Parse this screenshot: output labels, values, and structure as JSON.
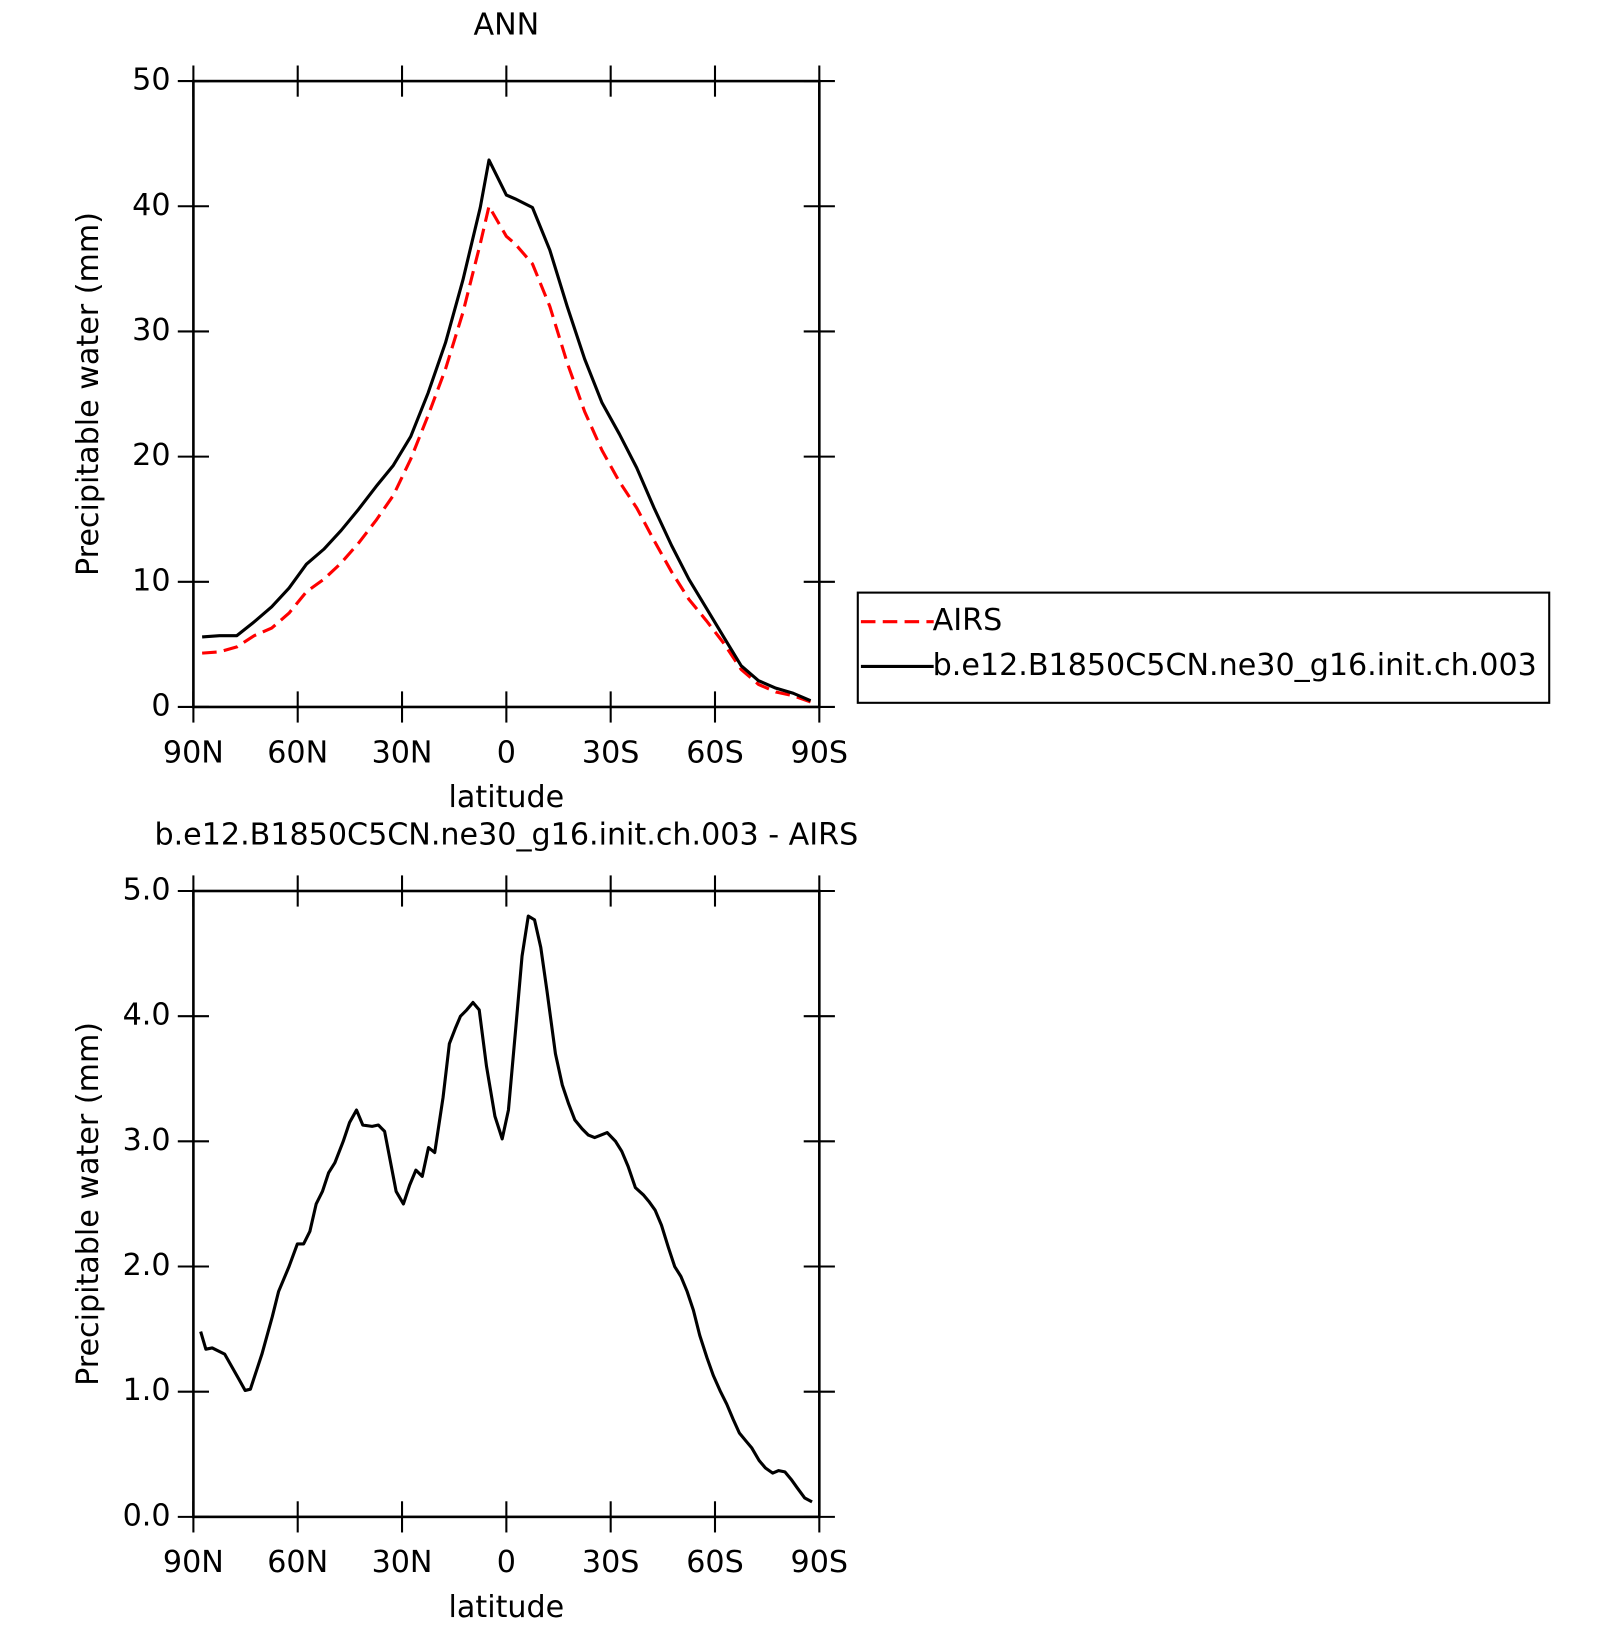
{
  "chart_data": [
    {
      "type": "line",
      "title": "ANN",
      "x_label": "latitude",
      "y_label": "Precipitable water (mm)",
      "x": [
        87.5,
        82.5,
        77.5,
        72.5,
        67.5,
        62.5,
        57.5,
        52.5,
        47.5,
        42.5,
        37.5,
        32.5,
        27.5,
        22.5,
        17.5,
        12.5,
        7.5,
        5,
        2.5,
        0,
        -2.5,
        -7.5,
        -12.5,
        -17.5,
        -22.5,
        -27.5,
        -32.5,
        -37.5,
        -42.5,
        -47.5,
        -52.5,
        -57.5,
        -62.5,
        -67.5,
        -72.5,
        -77.5,
        -82.5,
        -87.5
      ],
      "xlim": [
        90,
        -90
      ],
      "xticks": [
        {
          "value": 90,
          "label": "90N"
        },
        {
          "value": 60,
          "label": "60N"
        },
        {
          "value": 30,
          "label": "30N"
        },
        0,
        {
          "value": -30,
          "label": "30S"
        },
        {
          "value": -60,
          "label": "60S"
        },
        {
          "value": -90,
          "label": "90S"
        }
      ],
      "ylim": [
        0,
        50
      ],
      "yticks": [
        0,
        10,
        20,
        30,
        40,
        50
      ],
      "legend": "right",
      "series": [
        {
          "name": "AIRS",
          "color": "#ff0000",
          "dash": "dashed",
          "values": [
            4.3,
            4.4,
            4.8,
            5.7,
            6.3,
            7.5,
            9.2,
            10.2,
            11.5,
            13.1,
            14.9,
            16.9,
            19.8,
            23.3,
            27.0,
            31.5,
            37.0,
            40.0,
            38.8,
            37.6,
            37.0,
            35.4,
            32.0,
            27.5,
            23.6,
            20.5,
            18.0,
            15.9,
            13.3,
            10.8,
            8.6,
            6.9,
            5.1,
            3.0,
            1.8,
            1.2,
            0.9,
            0.4
          ]
        },
        {
          "name": "b.e12.B1850C5CN.ne30_g16.init.ch.003",
          "color": "#000000",
          "dash": "solid",
          "values": [
            5.6,
            5.7,
            5.7,
            6.8,
            8.0,
            9.5,
            11.4,
            12.6,
            14.1,
            15.8,
            17.6,
            19.3,
            21.6,
            25.1,
            29.1,
            34.1,
            39.9,
            43.7,
            42.3,
            40.9,
            40.6,
            39.9,
            36.5,
            32.0,
            27.8,
            24.3,
            21.8,
            19.1,
            15.9,
            12.9,
            10.2,
            7.9,
            5.6,
            3.3,
            2.1,
            1.5,
            1.1,
            0.5
          ]
        }
      ]
    },
    {
      "type": "line",
      "title": "b.e12.B1850C5CN.ne30_g16.init.ch.003 - AIRS",
      "x_label": "latitude",
      "y_label": "Precipitable water (mm)",
      "x": [
        87.9,
        86.4,
        84.6,
        81.0,
        76.9,
        75.1,
        73.6,
        70.3,
        67.3,
        65.5,
        62.5,
        60.1,
        58.3,
        56.5,
        54.7,
        52.9,
        51.1,
        49.3,
        46.9,
        45.1,
        43.1,
        41.3,
        38.6,
        36.8,
        35.0,
        31.7,
        29.6,
        27.8,
        26.0,
        24.2,
        22.4,
        20.6,
        18.2,
        16.4,
        14.7,
        13.2,
        11.4,
        9.6,
        7.8,
        5.7,
        3.3,
        1.2,
        -0.6,
        -2.7,
        -4.5,
        -6.3,
        -8.1,
        -9.9,
        -11.7,
        -14.1,
        -16.1,
        -17.9,
        -19.7,
        -21.8,
        -23.6,
        -25.4,
        -27.2,
        -29.0,
        -31.4,
        -33.2,
        -35.0,
        -37.1,
        -39.5,
        -41.0,
        -42.8,
        -44.6,
        -46.6,
        -48.4,
        -50.2,
        -52.0,
        -53.8,
        -55.6,
        -57.7,
        -59.5,
        -61.6,
        -63.4,
        -65.2,
        -67.0,
        -69.1,
        -70.6,
        -72.7,
        -74.5,
        -76.6,
        -78.3,
        -80.1,
        -81.9,
        -83.7,
        -85.8,
        -87.9
      ],
      "values": [
        1.48,
        1.34,
        1.35,
        1.3,
        1.1,
        1.01,
        1.02,
        1.3,
        1.6,
        1.8,
        2.0,
        2.18,
        2.18,
        2.28,
        2.5,
        2.6,
        2.75,
        2.83,
        3.0,
        3.15,
        3.25,
        3.13,
        3.12,
        3.13,
        3.08,
        2.6,
        2.5,
        2.65,
        2.77,
        2.72,
        2.95,
        2.91,
        3.35,
        3.78,
        3.9,
        4.0,
        4.05,
        4.11,
        4.05,
        3.6,
        3.2,
        3.02,
        3.25,
        3.9,
        4.48,
        4.8,
        4.77,
        4.55,
        4.2,
        3.7,
        3.45,
        3.3,
        3.17,
        3.1,
        3.05,
        3.03,
        3.05,
        3.07,
        3.0,
        2.92,
        2.8,
        2.63,
        2.57,
        2.52,
        2.45,
        2.33,
        2.15,
        2.0,
        1.92,
        1.8,
        1.65,
        1.45,
        1.27,
        1.13,
        1.0,
        0.9,
        0.78,
        0.67,
        0.6,
        0.55,
        0.45,
        0.39,
        0.35,
        0.37,
        0.36,
        0.3,
        0.23,
        0.15,
        0.12
      ],
      "color": "#000000",
      "xlim": [
        90,
        -90
      ],
      "xticks": [
        {
          "value": 90,
          "label": "90N"
        },
        {
          "value": 60,
          "label": "60N"
        },
        {
          "value": 30,
          "label": "30N"
        },
        0,
        {
          "value": -30,
          "label": "30S"
        },
        {
          "value": -60,
          "label": "60S"
        },
        {
          "value": -90,
          "label": "90S"
        }
      ],
      "ylim": [
        0,
        5
      ],
      "yticks": [
        {
          "value": 0,
          "label": "0.0"
        },
        {
          "value": 1,
          "label": "1.0"
        },
        {
          "value": 2,
          "label": "2.0"
        },
        {
          "value": 3,
          "label": "3.0"
        },
        {
          "value": 4,
          "label": "4.0"
        },
        {
          "value": 5,
          "label": "5.0"
        }
      ]
    }
  ]
}
